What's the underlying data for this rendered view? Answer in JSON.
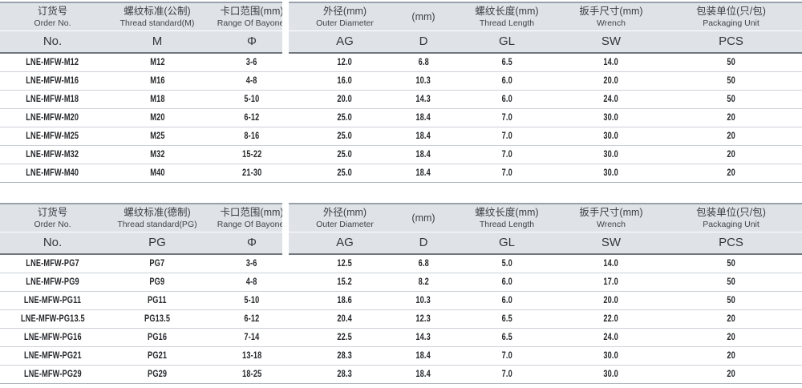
{
  "colors": {
    "header_bg": "#dfe3e8",
    "header_top_border": "#99a1ab",
    "header_bottom_border": "#70777f",
    "header_row_divider": "#ffffff",
    "row_divider": "#ccd1d7",
    "table_bottom_border": "#aab0b7",
    "header_text": "#3a3e43",
    "data_text": "#26282b",
    "page_bg": "#ffffff"
  },
  "tables": [
    {
      "id": "metric-thread-table",
      "columns": [
        {
          "cn": "订货号",
          "en": "Order No.",
          "symbol": "No."
        },
        {
          "cn": "螺纹标准(公制)",
          "en": "Thread standard(M)",
          "symbol": "M"
        },
        {
          "cn": "卡口范围(mm)",
          "en": "Range Of Bayonet",
          "symbol": "Φ"
        },
        {
          "cn": "外径(mm)",
          "en": "Outer Diameter",
          "symbol": "AG"
        },
        {
          "cn": "(mm)",
          "en": "",
          "symbol": "D"
        },
        {
          "cn": "螺纹长度(mm)",
          "en": "Thread Length",
          "symbol": "GL"
        },
        {
          "cn": "扳手尺寸(mm)",
          "en": "Wrench",
          "symbol": "SW"
        },
        {
          "cn": "包装单位(只/包)",
          "en": "Packaging Unit",
          "symbol": "PCS"
        }
      ],
      "rows": [
        [
          "LNE-MFW-M12",
          "M12",
          "3-6",
          "12.0",
          "6.8",
          "6.5",
          "14.0",
          "50"
        ],
        [
          "LNE-MFW-M16",
          "M16",
          "4-8",
          "16.0",
          "10.3",
          "6.0",
          "20.0",
          "50"
        ],
        [
          "LNE-MFW-M18",
          "M18",
          "5-10",
          "20.0",
          "14.3",
          "6.0",
          "24.0",
          "50"
        ],
        [
          "LNE-MFW-M20",
          "M20",
          "6-12",
          "25.0",
          "18.4",
          "7.0",
          "30.0",
          "20"
        ],
        [
          "LNE-MFW-M25",
          "M25",
          "8-16",
          "25.0",
          "18.4",
          "7.0",
          "30.0",
          "20"
        ],
        [
          "LNE-MFW-M32",
          "M32",
          "15-22",
          "25.0",
          "18.4",
          "7.0",
          "30.0",
          "20"
        ],
        [
          "LNE-MFW-M40",
          "M40",
          "21-30",
          "25.0",
          "18.4",
          "7.0",
          "30.0",
          "20"
        ]
      ]
    },
    {
      "id": "pg-thread-table",
      "columns": [
        {
          "cn": "订货号",
          "en": "Order No.",
          "symbol": "No."
        },
        {
          "cn": "螺纹标准(德制)",
          "en": "Thread standard(PG)",
          "symbol": "PG"
        },
        {
          "cn": "卡口范围(mm)",
          "en": "Range Of Bayonet",
          "symbol": "Φ"
        },
        {
          "cn": "外径(mm)",
          "en": "Outer Diameter",
          "symbol": "AG"
        },
        {
          "cn": "(mm)",
          "en": "",
          "symbol": "D"
        },
        {
          "cn": "螺纹长度(mm)",
          "en": "Thread Length",
          "symbol": "GL"
        },
        {
          "cn": "扳手尺寸(mm)",
          "en": "Wrench",
          "symbol": "SW"
        },
        {
          "cn": "包装单位(只/包)",
          "en": "Packaging Unit",
          "symbol": "PCS"
        }
      ],
      "rows": [
        [
          "LNE-MFW-PG7",
          "PG7",
          "3-6",
          "12.5",
          "6.8",
          "5.0",
          "14.0",
          "50"
        ],
        [
          "LNE-MFW-PG9",
          "PG9",
          "4-8",
          "15.2",
          "8.2",
          "6.0",
          "17.0",
          "50"
        ],
        [
          "LNE-MFW-PG11",
          "PG11",
          "5-10",
          "18.6",
          "10.3",
          "6.0",
          "20.0",
          "50"
        ],
        [
          "LNE-MFW-PG13.5",
          "PG13.5",
          "6-12",
          "20.4",
          "12.3",
          "6.5",
          "22.0",
          "20"
        ],
        [
          "LNE-MFW-PG16",
          "PG16",
          "7-14",
          "22.5",
          "14.3",
          "6.5",
          "24.0",
          "20"
        ],
        [
          "LNE-MFW-PG21",
          "PG21",
          "13-18",
          "28.3",
          "18.4",
          "7.0",
          "30.0",
          "20"
        ],
        [
          "LNE-MFW-PG29",
          "PG29",
          "18-25",
          "28.3",
          "18.4",
          "7.0",
          "30.0",
          "20"
        ]
      ]
    }
  ]
}
